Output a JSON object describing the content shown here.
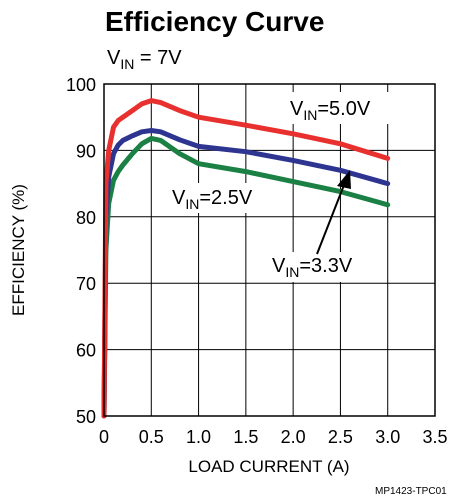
{
  "chart_data": {
    "type": "line",
    "title": "Efficiency Curve",
    "subtitle": {
      "main": "V",
      "sub": "IN",
      "rest": " = 7V"
    },
    "xlabel": "LOAD CURRENT (A)",
    "ylabel": "EFFICIENCY (%)",
    "xlim": [
      0,
      3.5
    ],
    "ylim": [
      50,
      100
    ],
    "x_ticks": [
      "0",
      "0.5",
      "1.0",
      "1.5",
      "2.0",
      "2.5",
      "3.0",
      "3.5"
    ],
    "y_ticks": [
      "50",
      "60",
      "70",
      "80",
      "90",
      "100"
    ],
    "grid": true,
    "series": [
      {
        "name": "VIN=5.0V",
        "color": "#e8312f",
        "x": [
          0.0,
          0.02,
          0.05,
          0.1,
          0.15,
          0.2,
          0.3,
          0.4,
          0.5,
          0.6,
          0.8,
          1.0,
          1.5,
          2.0,
          2.5,
          3.0
        ],
        "y": [
          50,
          85,
          90,
          93.5,
          94.5,
          95,
          96,
          97,
          97.5,
          97.2,
          96,
          95,
          93.8,
          92.5,
          91,
          88.8
        ]
      },
      {
        "name": "VIN=3.3V",
        "color": "#2d3590",
        "x": [
          0.0,
          0.02,
          0.05,
          0.1,
          0.15,
          0.2,
          0.3,
          0.4,
          0.5,
          0.6,
          0.8,
          1.0,
          1.5,
          2.0,
          2.5,
          3.0
        ],
        "y": [
          50,
          80,
          86,
          89.5,
          90.8,
          91.5,
          92.2,
          92.8,
          93,
          92.8,
          91.6,
          90.6,
          89.8,
          88.5,
          87,
          85
        ]
      },
      {
        "name": "VIN=2.5V",
        "color": "#1a8044",
        "x": [
          0.0,
          0.02,
          0.05,
          0.1,
          0.15,
          0.2,
          0.3,
          0.4,
          0.5,
          0.6,
          0.8,
          1.0,
          1.5,
          2.0,
          2.5,
          3.0
        ],
        "y": [
          50,
          75,
          82,
          85.5,
          86.8,
          87.8,
          89.5,
          91,
          91.8,
          91.5,
          89.5,
          88,
          86.8,
          85.3,
          83.8,
          81.8
        ]
      }
    ],
    "annotations": [
      {
        "main": "V",
        "sub": "IN",
        "rest": "=5.0V"
      },
      {
        "main": "V",
        "sub": "IN",
        "rest": "=2.5V"
      },
      {
        "main": "V",
        "sub": "IN",
        "rest": "=3.3V"
      }
    ],
    "credit": "MP1423-TPC01"
  }
}
